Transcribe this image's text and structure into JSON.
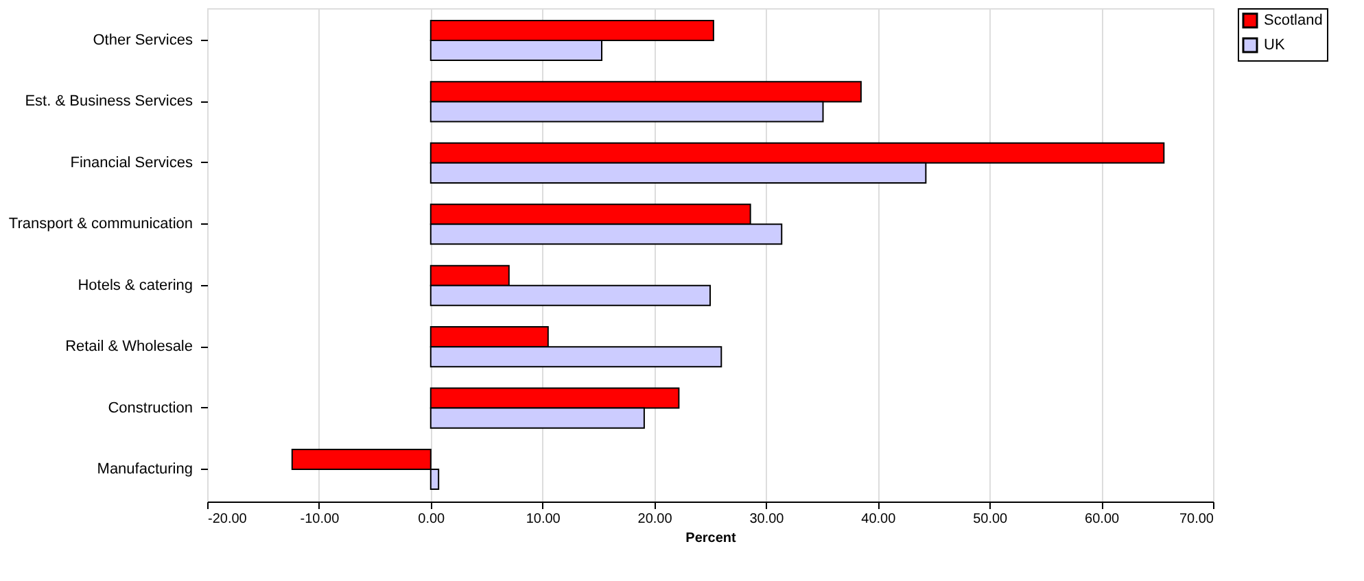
{
  "chart_data": {
    "type": "bar",
    "orientation": "horizontal",
    "xlabel": "Percent",
    "categories": [
      "Other Services",
      "Est. & Business Services",
      "Financial Services",
      "Transport & communication",
      "Hotels & catering",
      "Retail & Wholesale",
      "Construction",
      "Manufacturing"
    ],
    "series": [
      {
        "name": "Scotland",
        "color": "#ff0000",
        "values": [
          25.3,
          38.5,
          65.6,
          28.6,
          7.0,
          10.5,
          22.2,
          -12.4
        ]
      },
      {
        "name": "UK",
        "color": "#ccccff",
        "values": [
          15.3,
          35.1,
          44.3,
          31.4,
          25.0,
          26.0,
          19.1,
          0.7
        ]
      }
    ],
    "xlim": [
      -20,
      70
    ],
    "xticks": [
      {
        "value": -20,
        "label": "-20.00"
      },
      {
        "value": -10,
        "label": "-10.00"
      },
      {
        "value": 0,
        "label": "0.00"
      },
      {
        "value": 10,
        "label": "10.00"
      },
      {
        "value": 20,
        "label": "20.00"
      },
      {
        "value": 30,
        "label": "30.00"
      },
      {
        "value": 40,
        "label": "40.00"
      },
      {
        "value": 50,
        "label": "50.00"
      },
      {
        "value": 60,
        "label": "60.00"
      },
      {
        "value": 70,
        "label": "70.00"
      }
    ],
    "grid": "x",
    "legend": "right"
  }
}
